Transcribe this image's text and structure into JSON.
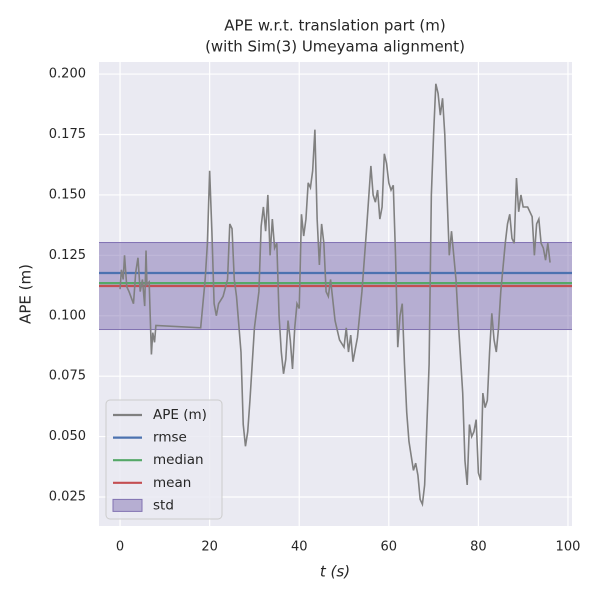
{
  "chart_data": {
    "type": "line",
    "title": "APE w.r.t. translation part (m)",
    "subtitle": "(with Sim(3) Umeyama alignment)",
    "x_label": "t (s)",
    "y_label": "APE (m)",
    "xlim": [
      -4.7,
      100.9
    ],
    "ylim": [
      0.013,
      0.205
    ],
    "xticks": [
      0,
      20,
      40,
      60,
      80,
      100
    ],
    "yticks": [
      0.025,
      {
        "value": 0.05,
        "label": "0.050"
      },
      0.075,
      {
        "value": 0.1,
        "label": "0.100"
      },
      0.125,
      {
        "value": 0.15,
        "label": "0.150"
      },
      0.175,
      {
        "value": 0.2,
        "label": "0.200"
      }
    ],
    "grid": true,
    "legend": "lower left",
    "x": [
      0,
      0.3,
      0.7,
      1,
      1.5,
      2,
      3,
      3.5,
      4,
      4.5,
      5,
      5.5,
      5.8,
      6,
      6.5,
      7,
      7.3,
      7.7,
      8,
      18,
      19,
      19.5,
      20,
      20.5,
      21,
      21.5,
      22,
      23,
      24,
      24.5,
      25,
      25.5,
      26,
      27,
      27.5,
      28,
      28.5,
      29,
      30,
      31,
      31.5,
      32,
      32.5,
      33,
      33.5,
      34,
      34.5,
      35,
      35.5,
      36,
      36.5,
      37,
      37.5,
      38,
      38.5,
      39,
      39.5,
      40,
      40.5,
      41,
      41.5,
      42,
      42.5,
      43,
      43.5,
      44,
      44.5,
      45,
      45.5,
      46,
      46.5,
      47,
      48,
      49,
      50,
      50.5,
      51,
      51.5,
      52,
      53,
      54,
      55,
      56,
      56.5,
      57,
      57.5,
      58,
      58.5,
      59,
      59.5,
      60,
      60.5,
      61,
      61.5,
      62,
      62.5,
      63,
      63.5,
      64,
      64.5,
      65,
      65.5,
      66,
      66.5,
      67,
      67.5,
      68,
      69,
      69.5,
      70,
      70.5,
      71,
      71.5,
      72,
      72.5,
      73,
      73.5,
      74,
      74.5,
      75,
      75.5,
      76,
      76.5,
      77,
      77.5,
      78,
      78.5,
      79,
      79.5,
      80,
      80.5,
      81,
      81.5,
      82,
      82.5,
      83,
      83.5,
      84,
      84.5,
      85,
      85.5,
      86,
      86.5,
      87,
      87.5,
      88,
      88.5,
      89,
      89.5,
      90,
      91,
      92,
      92.5,
      93,
      93.5,
      94,
      94.5,
      95,
      95.5,
      96
    ],
    "series": [
      {
        "name": "APE (m)",
        "color": "#808080",
        "values": [
          0.111,
          0.119,
          0.115,
          0.125,
          0.112,
          0.11,
          0.105,
          0.118,
          0.124,
          0.11,
          0.115,
          0.104,
          0.127,
          0.113,
          0.114,
          0.084,
          0.093,
          0.089,
          0.096,
          0.095,
          0.115,
          0.13,
          0.16,
          0.135,
          0.105,
          0.1,
          0.105,
          0.108,
          0.115,
          0.138,
          0.136,
          0.115,
          0.108,
          0.085,
          0.055,
          0.046,
          0.052,
          0.065,
          0.095,
          0.11,
          0.137,
          0.145,
          0.135,
          0.15,
          0.125,
          0.14,
          0.128,
          0.13,
          0.1,
          0.085,
          0.076,
          0.082,
          0.098,
          0.09,
          0.078,
          0.095,
          0.105,
          0.103,
          0.142,
          0.133,
          0.14,
          0.155,
          0.153,
          0.16,
          0.177,
          0.14,
          0.121,
          0.138,
          0.13,
          0.11,
          0.108,
          0.115,
          0.098,
          0.09,
          0.087,
          0.095,
          0.085,
          0.092,
          0.081,
          0.091,
          0.11,
          0.135,
          0.162,
          0.15,
          0.147,
          0.152,
          0.14,
          0.145,
          0.167,
          0.163,
          0.155,
          0.152,
          0.154,
          0.125,
          0.087,
          0.1,
          0.105,
          0.08,
          0.06,
          0.048,
          0.042,
          0.036,
          0.039,
          0.034,
          0.024,
          0.022,
          0.03,
          0.08,
          0.15,
          0.175,
          0.196,
          0.192,
          0.183,
          0.19,
          0.175,
          0.15,
          0.125,
          0.135,
          0.125,
          0.115,
          0.098,
          0.083,
          0.068,
          0.04,
          0.03,
          0.055,
          0.05,
          0.052,
          0.057,
          0.035,
          0.032,
          0.068,
          0.062,
          0.065,
          0.085,
          0.101,
          0.09,
          0.085,
          0.095,
          0.11,
          0.12,
          0.13,
          0.138,
          0.142,
          0.132,
          0.13,
          0.157,
          0.143,
          0.15,
          0.145,
          0.145,
          0.141,
          0.125,
          0.138,
          0.14,
          0.13,
          0.128,
          0.123,
          0.13,
          0.122
        ]
      }
    ],
    "statistics": [
      {
        "name": "rmse",
        "color": "#4c72b0",
        "value": 0.1177
      },
      {
        "name": "median",
        "color": "#55a868",
        "value": 0.1135
      },
      {
        "name": "mean",
        "color": "#c44e52",
        "value": 0.1123
      }
    ],
    "std": {
      "name": "std",
      "color": "#8172b2",
      "value": 0.018
    }
  }
}
